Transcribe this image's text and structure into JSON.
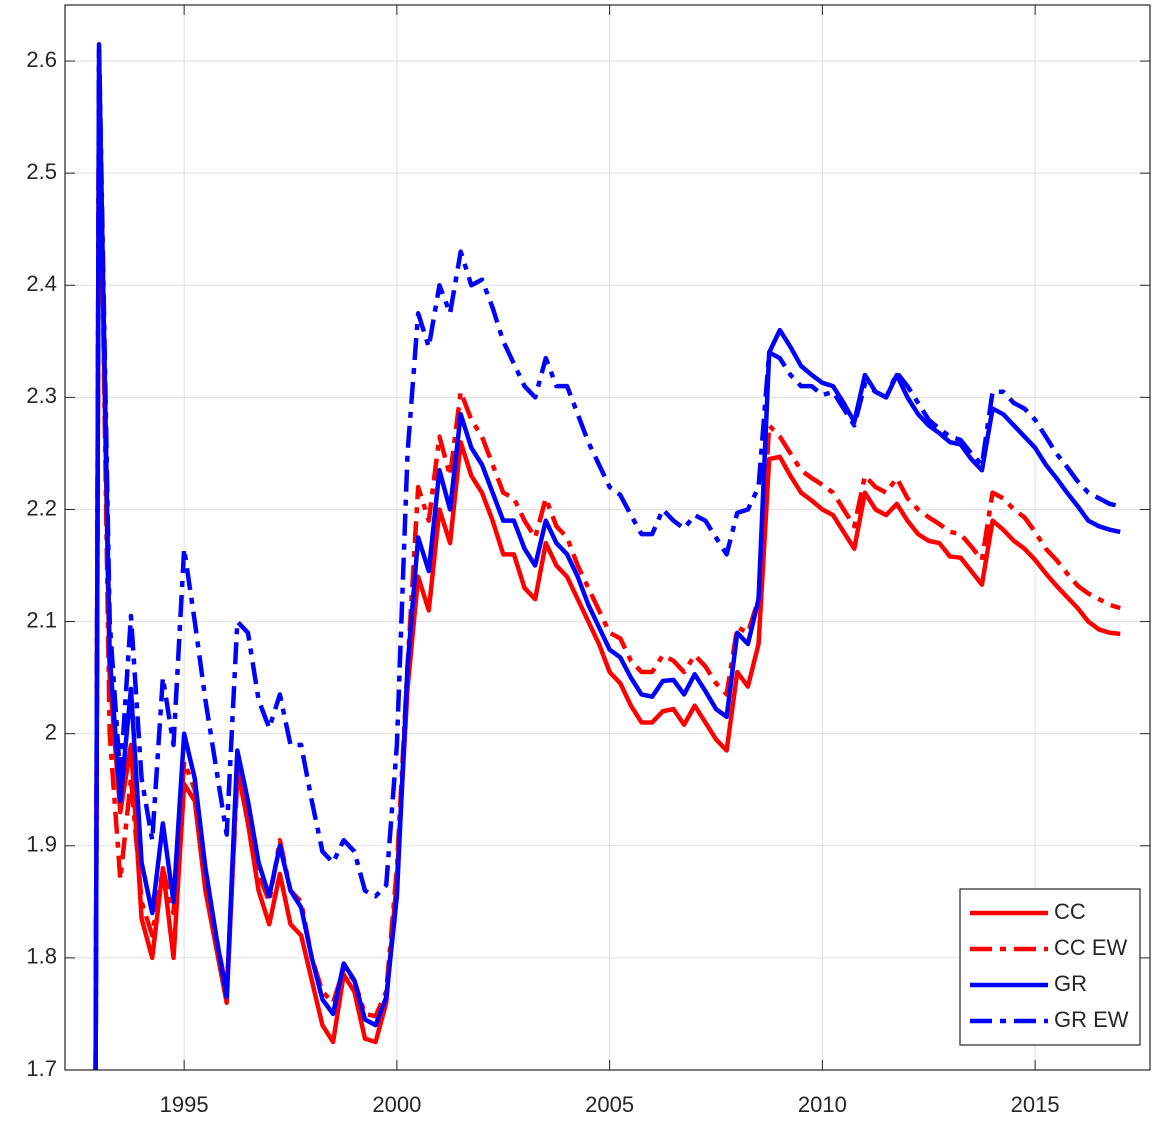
{
  "chart_data": {
    "type": "line",
    "x": [
      1992.92,
      1993,
      1993.25,
      1993.5,
      1993.75,
      1994,
      1994.25,
      1994.5,
      1994.75,
      1995,
      1995.25,
      1995.5,
      1995.75,
      1996,
      1996.25,
      1996.5,
      1996.75,
      1997,
      1997.25,
      1997.5,
      1997.75,
      1998,
      1998.25,
      1998.5,
      1998.75,
      1999,
      1999.25,
      1999.5,
      1999.75,
      2000,
      2000.25,
      2000.5,
      2000.75,
      2001,
      2001.25,
      2001.5,
      2001.75,
      2002,
      2002.25,
      2002.5,
      2002.75,
      2003,
      2003.25,
      2003.5,
      2003.75,
      2004,
      2004.25,
      2004.5,
      2004.75,
      2005,
      2005.25,
      2005.5,
      2005.75,
      2006,
      2006.25,
      2006.5,
      2006.75,
      2007,
      2007.25,
      2007.5,
      2007.75,
      2008,
      2008.25,
      2008.5,
      2008.75,
      2009,
      2009.25,
      2009.5,
      2009.75,
      2010,
      2010.25,
      2010.5,
      2010.75,
      2011,
      2011.25,
      2011.5,
      2011.75,
      2012,
      2012.25,
      2012.5,
      2012.75,
      2013,
      2013.25,
      2013.5,
      2013.75,
      2014,
      2014.25,
      2014.5,
      2014.75,
      2015,
      2015.25,
      2015.5,
      2015.75,
      2016,
      2016.25,
      2016.5,
      2016.75,
      2017
    ],
    "series": [
      {
        "name": "CC",
        "color": "#ff0000",
        "style": "solid",
        "values": [
          1.7,
          2.58,
          2.05,
          1.93,
          1.99,
          1.835,
          1.8,
          1.88,
          1.8,
          1.955,
          1.94,
          1.86,
          1.81,
          1.76,
          1.97,
          1.92,
          1.86,
          1.83,
          1.875,
          1.83,
          1.82,
          1.78,
          1.74,
          1.725,
          1.785,
          1.77,
          1.728,
          1.725,
          1.76,
          1.87,
          2.04,
          2.14,
          2.11,
          2.2,
          2.17,
          2.26,
          2.23,
          2.215,
          2.19,
          2.16,
          2.16,
          2.13,
          2.12,
          2.17,
          2.15,
          2.14,
          2.12,
          2.1,
          2.08,
          2.055,
          2.045,
          2.025,
          2.01,
          2.01,
          2.02,
          2.022,
          2.008,
          2.025,
          2.01,
          1.995,
          1.985,
          2.055,
          2.042,
          2.08,
          2.245,
          2.247,
          2.23,
          2.215,
          2.208,
          2.2,
          2.195,
          2.18,
          2.165,
          2.215,
          2.2,
          2.195,
          2.205,
          2.19,
          2.178,
          2.172,
          2.17,
          2.158,
          2.157,
          2.145,
          2.133,
          2.19,
          2.182,
          2.172,
          2.165,
          2.155,
          2.143,
          2.132,
          2.122,
          2.112,
          2.1,
          2.093,
          2.09,
          2.089
        ]
      },
      {
        "name": "CC EW",
        "color": "#ff0000",
        "style": "dashdot",
        "values": [
          1.7,
          2.6,
          2.0,
          1.87,
          1.96,
          1.85,
          1.82,
          1.88,
          1.84,
          1.975,
          1.95,
          1.88,
          1.82,
          1.77,
          1.96,
          1.93,
          1.875,
          1.85,
          1.905,
          1.86,
          1.85,
          1.8,
          1.77,
          1.76,
          1.79,
          1.78,
          1.75,
          1.748,
          1.77,
          1.88,
          2.06,
          2.22,
          2.19,
          2.265,
          2.23,
          2.305,
          2.28,
          2.265,
          2.24,
          2.215,
          2.21,
          2.19,
          2.175,
          2.21,
          2.185,
          2.175,
          2.15,
          2.13,
          2.11,
          2.09,
          2.085,
          2.065,
          2.055,
          2.055,
          2.07,
          2.065,
          2.055,
          2.07,
          2.06,
          2.045,
          2.035,
          2.095,
          2.09,
          2.12,
          2.275,
          2.265,
          2.25,
          2.235,
          2.228,
          2.222,
          2.215,
          2.2,
          2.185,
          2.23,
          2.22,
          2.215,
          2.228,
          2.21,
          2.2,
          2.193,
          2.187,
          2.18,
          2.178,
          2.167,
          2.155,
          2.215,
          2.21,
          2.2,
          2.193,
          2.18,
          2.165,
          2.155,
          2.143,
          2.132,
          2.125,
          2.12,
          2.115,
          2.112
        ]
      },
      {
        "name": "GR",
        "color": "#0000ff",
        "style": "solid",
        "values": [
          1.7,
          2.61,
          2.07,
          1.94,
          2.04,
          1.885,
          1.84,
          1.92,
          1.85,
          2.0,
          1.96,
          1.88,
          1.82,
          1.765,
          1.985,
          1.94,
          1.885,
          1.855,
          1.9,
          1.86,
          1.845,
          1.8,
          1.763,
          1.75,
          1.795,
          1.78,
          1.745,
          1.74,
          1.765,
          1.855,
          2.06,
          2.175,
          2.145,
          2.235,
          2.2,
          2.285,
          2.255,
          2.24,
          2.215,
          2.19,
          2.19,
          2.165,
          2.15,
          2.19,
          2.17,
          2.16,
          2.14,
          2.115,
          2.095,
          2.075,
          2.068,
          2.05,
          2.035,
          2.033,
          2.047,
          2.048,
          2.035,
          2.053,
          2.038,
          2.022,
          2.015,
          2.09,
          2.08,
          2.12,
          2.34,
          2.36,
          2.345,
          2.328,
          2.32,
          2.313,
          2.31,
          2.295,
          2.278,
          2.32,
          2.305,
          2.3,
          2.32,
          2.3,
          2.285,
          2.275,
          2.268,
          2.26,
          2.258,
          2.245,
          2.235,
          2.29,
          2.285,
          2.275,
          2.265,
          2.255,
          2.24,
          2.228,
          2.215,
          2.203,
          2.19,
          2.185,
          2.182,
          2.18
        ]
      },
      {
        "name": "GR EW",
        "color": "#0000ff",
        "style": "dashdot",
        "values": [
          1.7,
          2.615,
          2.1,
          1.96,
          2.105,
          1.96,
          1.905,
          2.05,
          1.99,
          2.165,
          2.1,
          2.03,
          1.97,
          1.91,
          2.1,
          2.09,
          2.03,
          2.005,
          2.035,
          1.99,
          1.99,
          1.94,
          1.895,
          1.885,
          1.905,
          1.895,
          1.86,
          1.855,
          1.865,
          1.99,
          2.25,
          2.375,
          2.345,
          2.4,
          2.375,
          2.43,
          2.4,
          2.405,
          2.38,
          2.35,
          2.33,
          2.31,
          2.3,
          2.335,
          2.31,
          2.31,
          2.285,
          2.26,
          2.24,
          2.22,
          2.213,
          2.195,
          2.178,
          2.178,
          2.2,
          2.19,
          2.183,
          2.195,
          2.19,
          2.175,
          2.16,
          2.197,
          2.2,
          2.22,
          2.34,
          2.335,
          2.32,
          2.31,
          2.31,
          2.302,
          2.305,
          2.29,
          2.275,
          2.312,
          2.305,
          2.3,
          2.322,
          2.31,
          2.295,
          2.28,
          2.272,
          2.265,
          2.262,
          2.25,
          2.24,
          2.305,
          2.305,
          2.295,
          2.29,
          2.28,
          2.265,
          2.25,
          2.238,
          2.225,
          2.215,
          2.21,
          2.205,
          2.203
        ]
      }
    ],
    "xlim": [
      1992.2,
      2017.7
    ],
    "xticks": [
      1995,
      2000,
      2005,
      2010,
      2015
    ],
    "ylim": [
      1.7,
      2.65
    ],
    "yticks": [
      1.7,
      1.8,
      1.9,
      2,
      2.1,
      2.2,
      2.3,
      2.4,
      2.5,
      2.6
    ],
    "grid": true,
    "legend": "lower-right"
  }
}
